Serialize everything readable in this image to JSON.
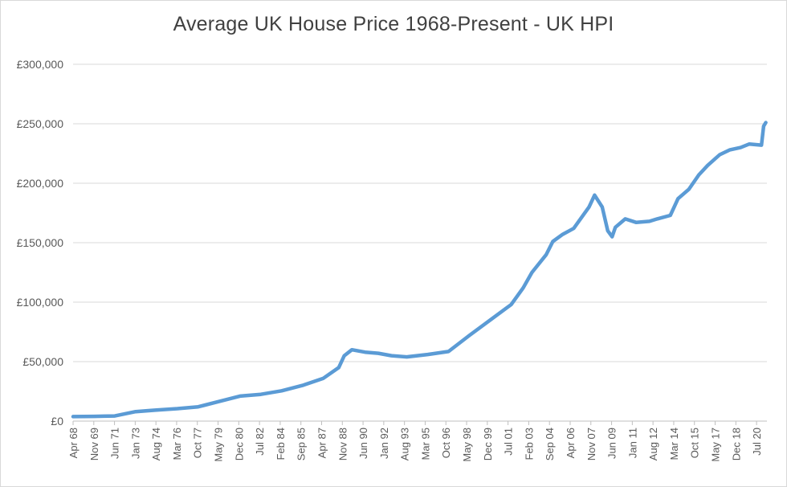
{
  "chart_data": {
    "type": "line",
    "title": "Average UK House Price 1968-Present - UK HPI",
    "xlabel": "",
    "ylabel": "",
    "ylim": [
      0,
      300000
    ],
    "grid": true,
    "legend": "none",
    "line_color": "#5b9bd5",
    "y_ticks": [
      "£0",
      "£50,000",
      "£100,000",
      "£150,000",
      "£200,000",
      "£250,000",
      "£300,000"
    ],
    "y_tick_values": [
      0,
      50000,
      100000,
      150000,
      200000,
      250000,
      300000
    ],
    "x_ticks": [
      "Apr 68",
      "Nov 69",
      "Jun 71",
      "Jan 73",
      "Aug 74",
      "Mar 76",
      "Oct 77",
      "May 79",
      "Dec 80",
      "Jul 82",
      "Feb 84",
      "Sep 85",
      "Apr 87",
      "Nov 88",
      "Jun 90",
      "Jan 92",
      "Aug 93",
      "Mar 95",
      "Oct 96",
      "May 98",
      "Dec 99",
      "Jul 01",
      "Feb 03",
      "Sep 04",
      "Apr 06",
      "Nov 07",
      "Jun 09",
      "Jan 11",
      "Aug 12",
      "Mar 14",
      "Oct 15",
      "May 17",
      "Dec 18",
      "Jul 20"
    ],
    "series": [
      {
        "x": [
          "1968-04",
          "1969-11",
          "1971-06",
          "1973-01",
          "1974-08",
          "1976-03",
          "1977-10",
          "1979-05",
          "1980-12",
          "1982-07",
          "1984-02",
          "1985-09",
          "1987-04",
          "1988-06",
          "1988-11",
          "1989-06",
          "1990-06",
          "1991-06",
          "1992-06",
          "1993-08",
          "1995-03",
          "1996-10",
          "1998-05",
          "1999-12",
          "2001-07",
          "2002-06",
          "2003-02",
          "2004-03",
          "2004-09",
          "2005-06",
          "2006-04",
          "2007-06",
          "2007-11",
          "2008-06",
          "2008-11",
          "2009-03",
          "2009-06",
          "2010-03",
          "2011-01",
          "2012-01",
          "2012-08",
          "2013-08",
          "2014-03",
          "2015-01",
          "2015-10",
          "2016-06",
          "2017-05",
          "2018-02",
          "2018-12",
          "2019-08",
          "2020-07",
          "2020-09",
          "2020-11"
        ],
        "values": [
          3800,
          4000,
          4300,
          8000,
          9300,
          10500,
          12000,
          16500,
          21000,
          22500,
          25500,
          30000,
          36000,
          45000,
          55000,
          60000,
          58000,
          57000,
          55000,
          54000,
          56000,
          58500,
          72000,
          85000,
          98000,
          112000,
          125000,
          140000,
          151000,
          157000,
          162000,
          180000,
          190000,
          180000,
          160000,
          155000,
          163000,
          170000,
          167000,
          168000,
          170000,
          173000,
          187000,
          195000,
          207000,
          215000,
          224000,
          228000,
          230000,
          233000,
          232000,
          248000,
          251000
        ]
      }
    ]
  }
}
